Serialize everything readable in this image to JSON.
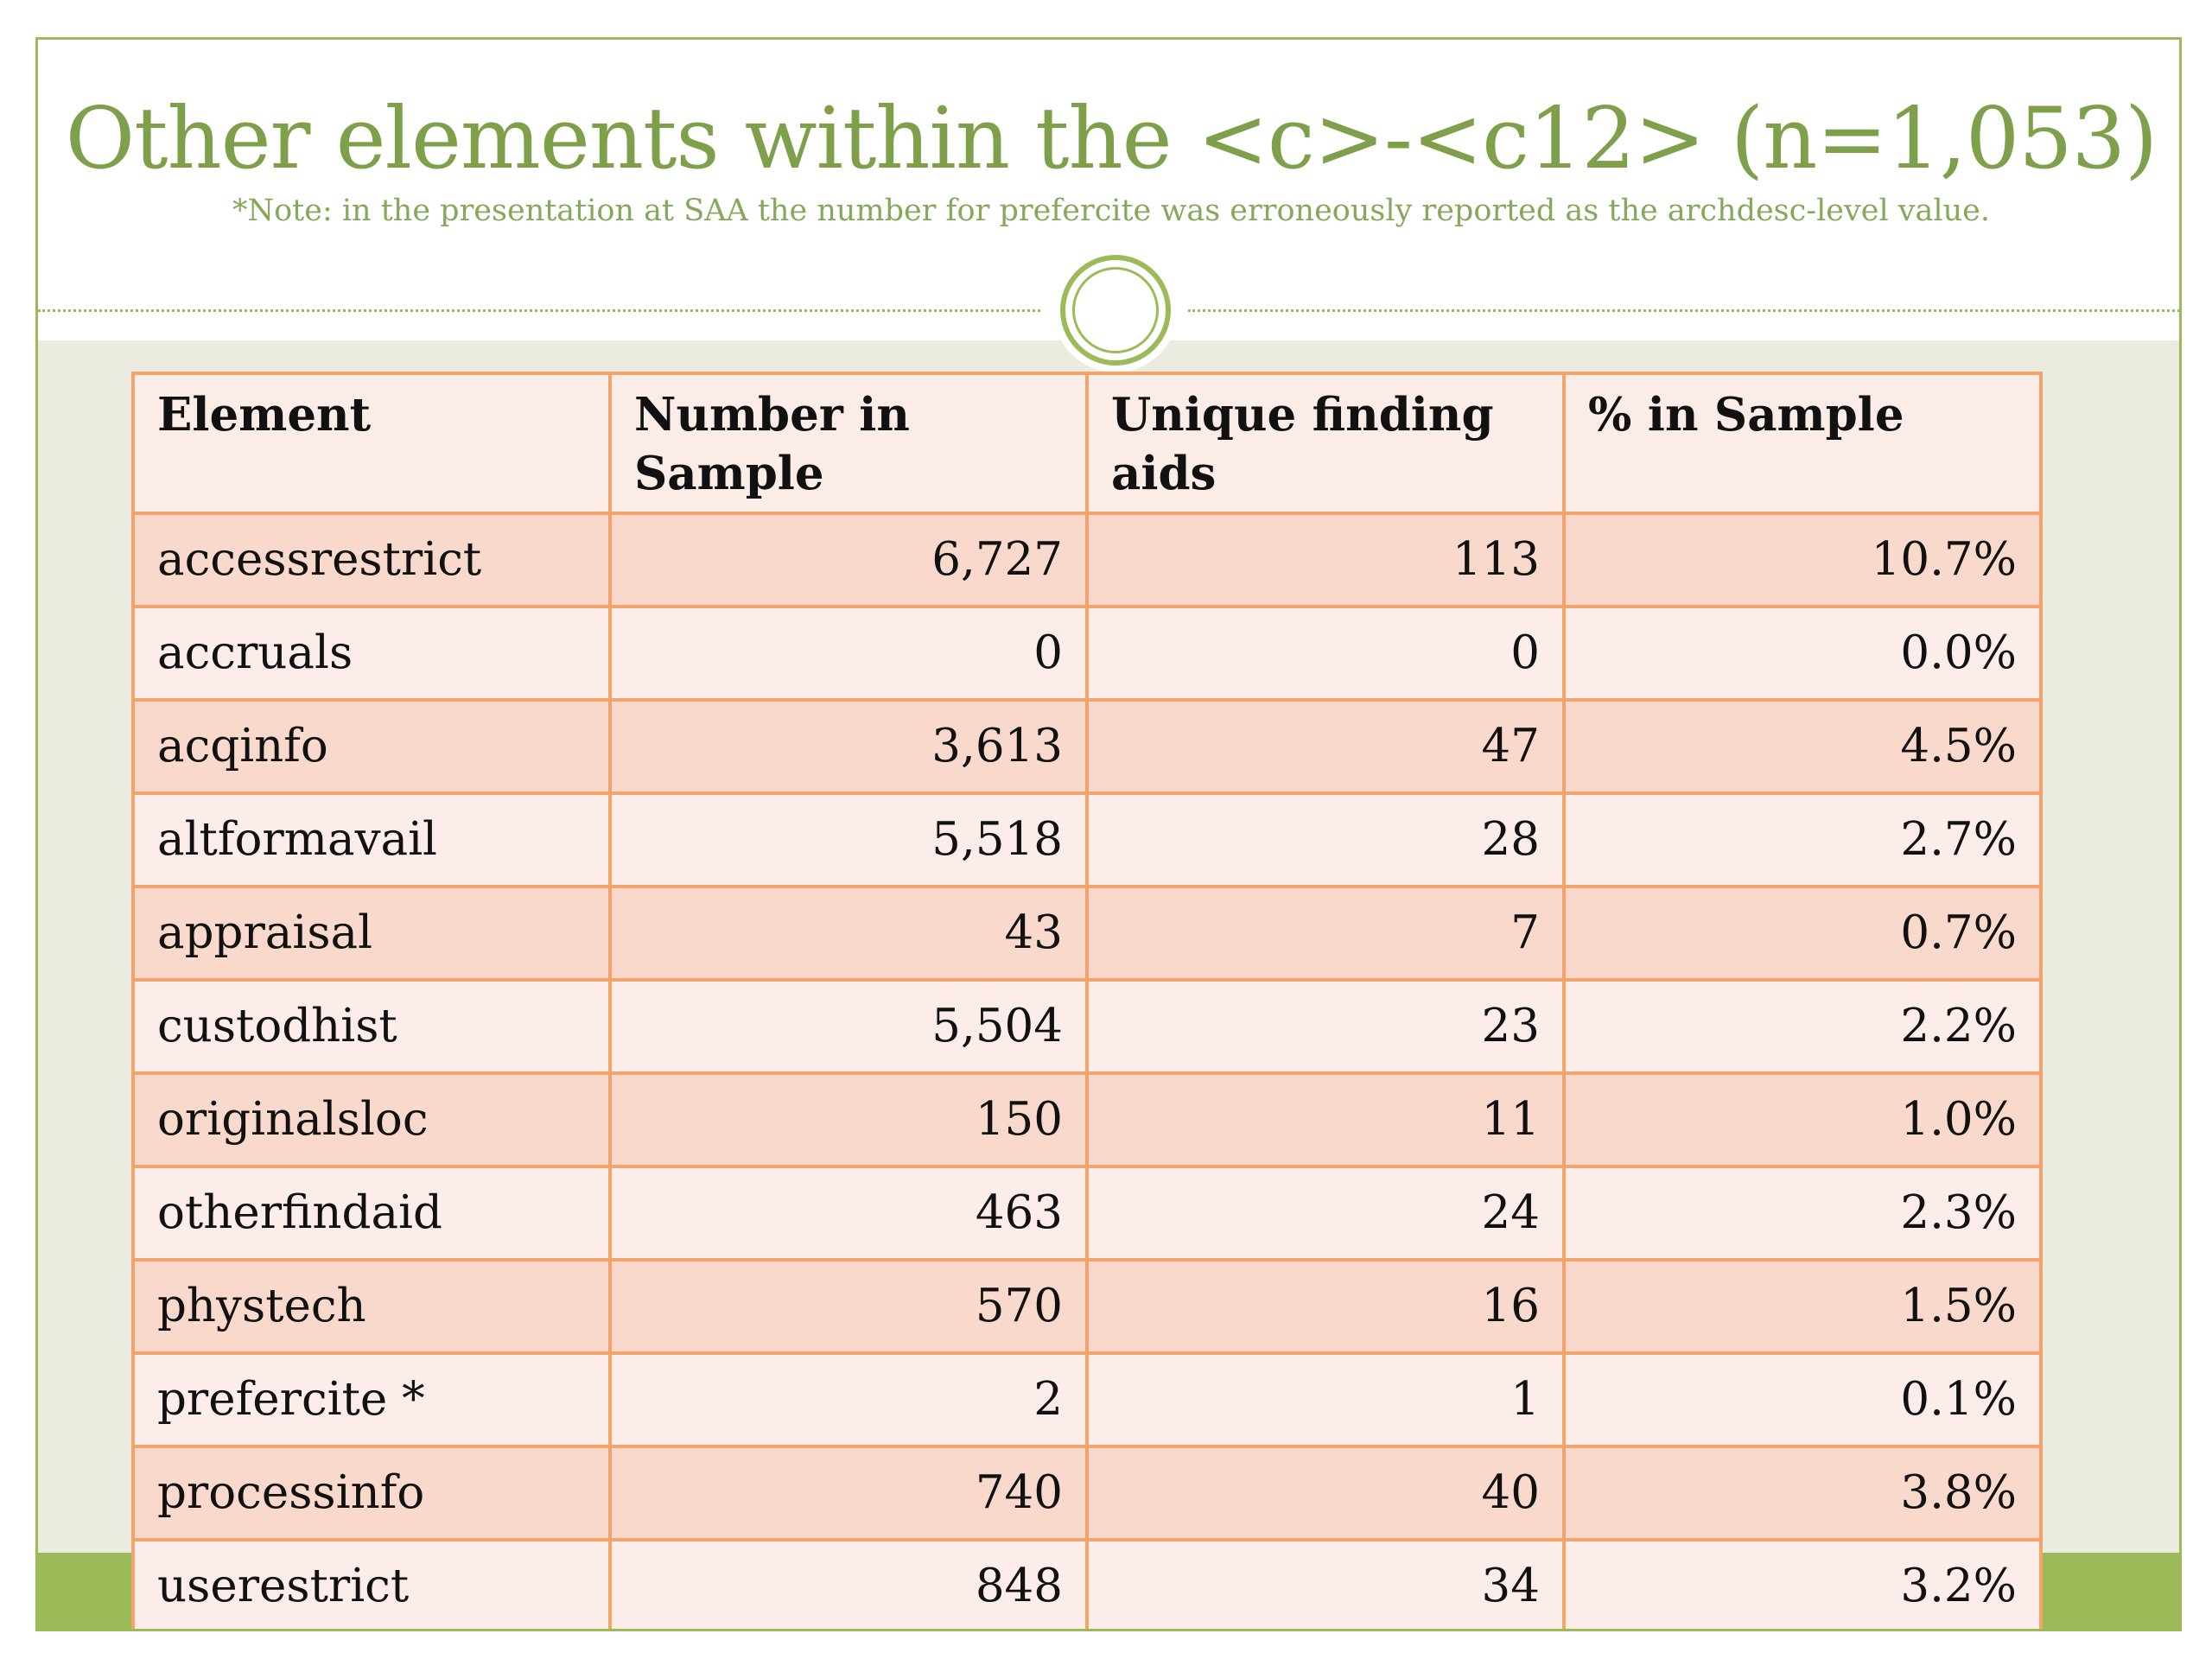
{
  "slide": {
    "title": "Other elements within the <c>-<c12> (n=1,053)",
    "note": "*Note: in the presentation at SAA the number for prefercite was erroneously reported as the archdesc-level value."
  },
  "colors": {
    "accent_green": "#9bbb59",
    "title_green": "#7ea04a",
    "table_border": "#f4a36a",
    "row_dark": "#f8d9cc",
    "row_light": "#fcecea"
  },
  "table": {
    "headers": [
      "Element",
      "Number in Sample",
      "Unique finding aids",
      "% in Sample"
    ],
    "rows": [
      {
        "element": "accessrestrict",
        "number": "6,727",
        "unique": "113",
        "percent": "10.7%"
      },
      {
        "element": "accruals",
        "number": "0",
        "unique": "0",
        "percent": "0.0%"
      },
      {
        "element": "acqinfo",
        "number": "3,613",
        "unique": "47",
        "percent": "4.5%"
      },
      {
        "element": "altformavail",
        "number": "5,518",
        "unique": "28",
        "percent": "2.7%"
      },
      {
        "element": "appraisal",
        "number": "43",
        "unique": "7",
        "percent": "0.7%"
      },
      {
        "element": "custodhist",
        "number": "5,504",
        "unique": "23",
        "percent": "2.2%"
      },
      {
        "element": "originalsloc",
        "number": "150",
        "unique": "11",
        "percent": "1.0%"
      },
      {
        "element": "otherfindaid",
        "number": "463",
        "unique": "24",
        "percent": "2.3%"
      },
      {
        "element": "phystech",
        "number": "570",
        "unique": "16",
        "percent": "1.5%"
      },
      {
        "element": "prefercite *",
        "number": "2",
        "unique": "1",
        "percent": "0.1%"
      },
      {
        "element": "processinfo",
        "number": "740",
        "unique": "40",
        "percent": "3.8%"
      },
      {
        "element": "userestrict",
        "number": "848",
        "unique": "34",
        "percent": "3.2%"
      }
    ]
  }
}
